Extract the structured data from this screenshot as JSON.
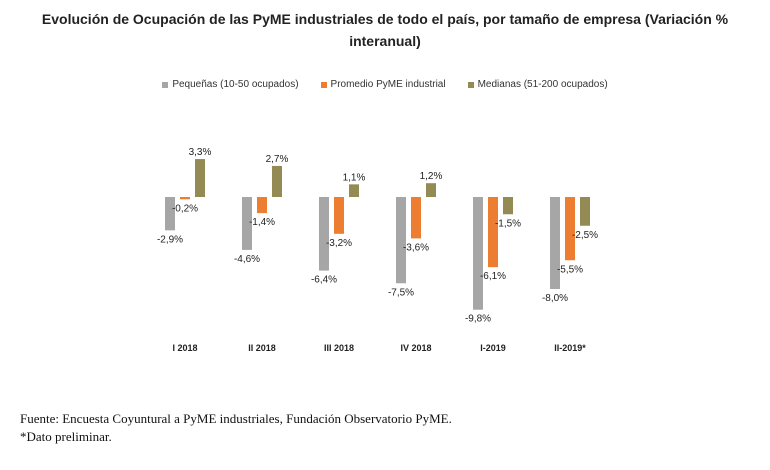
{
  "chart_data": {
    "type": "bar",
    "title_line1": "Evolución de Ocupación de las PyME industriales de todo el país, por tamaño de empresa (Variación %",
    "title_line2": "interanual)",
    "categories": [
      "I 2018",
      "II 2018",
      "III 2018",
      "IV 2018",
      "I-2019",
      "II-2019*"
    ],
    "series": [
      {
        "name": "Pequeñas (10-50 ocupados)",
        "color": "#a6a6a6",
        "values": [
          -2.9,
          -4.6,
          -6.4,
          -7.5,
          -9.8,
          -8.0
        ],
        "labels": [
          "-2,9%",
          "-4,6%",
          "-6,4%",
          "-7,5%",
          "-9,8%",
          "-8,0%"
        ]
      },
      {
        "name": "Promedio PyME industrial",
        "color": "#ed7d31",
        "values": [
          -0.2,
          -1.4,
          -3.2,
          -3.6,
          -6.1,
          -5.5
        ],
        "labels": [
          "-0,2%",
          "-1,4%",
          "-3,2%",
          "-3,6%",
          "-6,1%",
          "-5,5%"
        ]
      },
      {
        "name": "Medianas (51-200 ocupados)",
        "color": "#948a54",
        "values": [
          3.3,
          2.7,
          1.1,
          1.2,
          -1.5,
          -2.5
        ],
        "labels": [
          "3,3%",
          "2,7%",
          "1,1%",
          "1,2%",
          "-1,5%",
          "-2,5%"
        ]
      }
    ],
    "legend_position": "top",
    "grid": false
  },
  "footer": {
    "source": "Fuente: Encuesta Coyuntural a PyME industriales, Fundación Observatorio PyME.",
    "note": "*Dato preliminar."
  }
}
